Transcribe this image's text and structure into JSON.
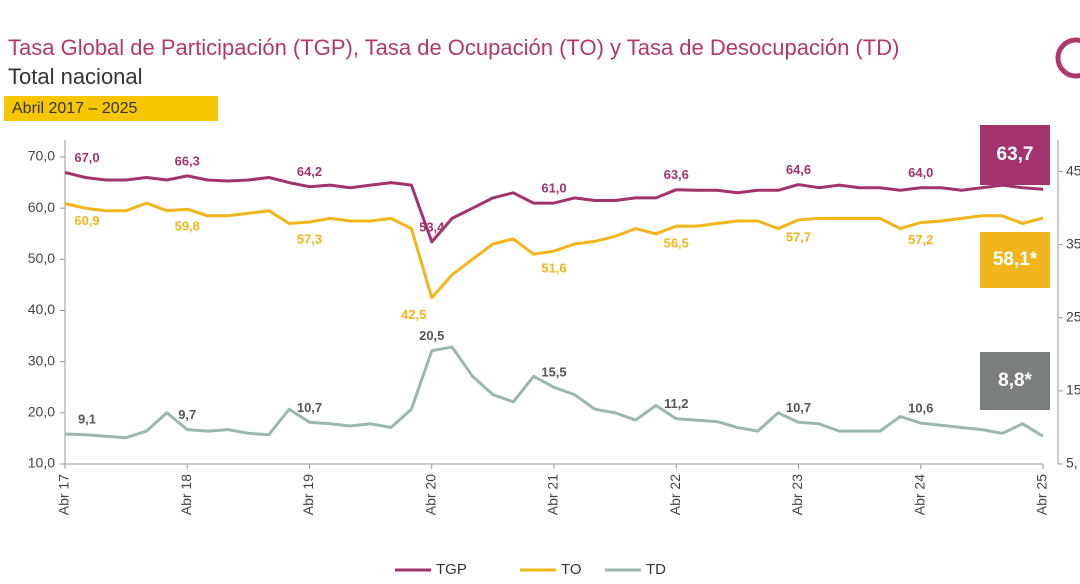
{
  "chart_data": {
    "type": "line",
    "title": "Tasa Global de Participación (TGP), Tasa de Ocupación (TO) y Tasa de Desocupación (TD)",
    "subtitle": "Total nacional",
    "period": "Abril 2017 – 2025",
    "categories": [
      "Abr 17",
      null,
      null,
      null,
      null,
      null,
      "Abr 18",
      null,
      null,
      null,
      null,
      null,
      "Abr 19",
      null,
      null,
      null,
      null,
      null,
      "Abr 20",
      null,
      null,
      null,
      null,
      null,
      "Abr 21",
      null,
      null,
      null,
      null,
      null,
      "Abr 22",
      null,
      null,
      null,
      null,
      null,
      "Abr 23",
      null,
      null,
      null,
      null,
      null,
      "Abr 24",
      null,
      null,
      null,
      null,
      null,
      "Abr 25"
    ],
    "series": [
      {
        "name": "TGP",
        "color": "#a3336d",
        "values": [
          67.0,
          66,
          65.5,
          65.5,
          66,
          65.5,
          66.3,
          65.5,
          65.3,
          65.5,
          66,
          65,
          64.2,
          64.5,
          64,
          64.5,
          65,
          64.5,
          53.4,
          58,
          60,
          62,
          63,
          61,
          61.0,
          62,
          61.5,
          61.5,
          62,
          62,
          63.6,
          63.5,
          63.5,
          63,
          63.5,
          63.5,
          64.6,
          64,
          64.5,
          64,
          64,
          63.5,
          64.0,
          64,
          63.5,
          64,
          64.5,
          64,
          63.7
        ],
        "value_labels": [
          "67,0",
          null,
          null,
          null,
          null,
          null,
          "66,3",
          null,
          null,
          null,
          null,
          null,
          "64,2",
          null,
          null,
          null,
          null,
          null,
          "53,4",
          null,
          null,
          null,
          null,
          null,
          "61,0",
          null,
          null,
          null,
          null,
          null,
          "63,6",
          null,
          null,
          null,
          null,
          null,
          "64,6",
          null,
          null,
          null,
          null,
          null,
          "64,0",
          null,
          null,
          null,
          null,
          null,
          "63,7"
        ]
      },
      {
        "name": "TO",
        "color": "#f2b51c",
        "values": [
          60.9,
          60,
          59.5,
          59.5,
          61,
          59.5,
          59.8,
          58.5,
          58.5,
          59,
          59.5,
          57,
          57.3,
          58,
          57.5,
          57.5,
          58,
          56,
          42.5,
          47,
          50,
          53,
          54,
          51,
          51.6,
          53,
          53.5,
          54.5,
          56,
          55,
          56.5,
          56.5,
          57,
          57.5,
          57.5,
          56,
          57.7,
          58,
          58,
          58,
          58,
          56,
          57.2,
          57.5,
          58,
          58.5,
          58.5,
          57,
          58.1
        ],
        "value_labels": [
          "60,9",
          null,
          null,
          null,
          null,
          null,
          "59,8",
          null,
          null,
          null,
          null,
          null,
          "57,3",
          null,
          null,
          null,
          null,
          null,
          "42,5",
          null,
          null,
          null,
          null,
          null,
          "51,6",
          null,
          null,
          null,
          null,
          null,
          "56,5",
          null,
          null,
          null,
          null,
          null,
          "57,7",
          null,
          null,
          null,
          null,
          null,
          "57,2",
          null,
          null,
          null,
          null,
          null,
          "58,1*"
        ]
      },
      {
        "name": "TD",
        "color": "#9cb8ae",
        "axis": "y2",
        "values": [
          9.1,
          9.0,
          8.8,
          8.6,
          9.5,
          12.0,
          9.7,
          9.5,
          9.7,
          9.2,
          9.0,
          12.5,
          10.7,
          10.5,
          10.2,
          10.5,
          10.0,
          12.5,
          20.5,
          21.0,
          17,
          14.5,
          13.5,
          17.0,
          15.5,
          14.5,
          12.5,
          12.0,
          11.0,
          13.0,
          11.2,
          11.0,
          10.8,
          10.0,
          9.5,
          12.0,
          10.7,
          10.5,
          9.5,
          9.5,
          9.5,
          11.5,
          10.6,
          10.3,
          10.0,
          9.7,
          9.2,
          10.5,
          8.8
        ],
        "value_labels": [
          "9,1",
          null,
          null,
          null,
          null,
          null,
          "9,7",
          null,
          null,
          null,
          null,
          null,
          "10,7",
          null,
          null,
          null,
          null,
          null,
          "20,5",
          null,
          null,
          null,
          null,
          null,
          "15,5",
          null,
          null,
          null,
          null,
          null,
          "11,2",
          null,
          null,
          null,
          null,
          null,
          "10,7",
          null,
          null,
          null,
          null,
          null,
          "10,6",
          null,
          null,
          null,
          null,
          null,
          "8,8*"
        ]
      }
    ],
    "ylim": [
      10,
      70
    ],
    "yticks": [
      {
        "value": 10,
        "label": "10,0"
      },
      {
        "value": 20,
        "label": "20,0"
      },
      {
        "value": 30,
        "label": "30,0"
      },
      {
        "value": 40,
        "label": "40,0"
      },
      {
        "value": 50,
        "label": "50,0"
      },
      {
        "value": 60,
        "label": "60,0"
      },
      {
        "value": 70,
        "label": "70,0"
      }
    ],
    "y2lim": [
      5,
      47
    ],
    "y2ticks": [
      {
        "value": 5,
        "label": "5,"
      },
      15,
      25,
      35,
      45
    ],
    "legend": "bottom"
  }
}
